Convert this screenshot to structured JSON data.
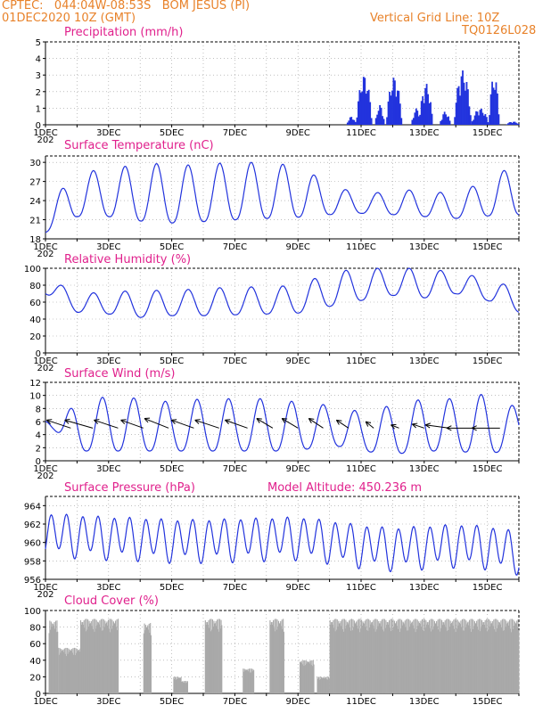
{
  "header": {
    "line1": "CPTEC:   044:04W-08:53S   BOM JESUS (PI)",
    "line2": "01DEC2020 10Z (GMT)",
    "right1": "Vertical Grid Line: 10Z",
    "right2": "TQ0126L028",
    "altitude_label": "Model Altitude: 450.236 m"
  },
  "colors": {
    "header": "#e8822a",
    "title": "#e0208c",
    "line": "#2233dd",
    "cloud": "#a9a9a9"
  },
  "x_axis": {
    "labels": [
      "1DEC",
      "3DEC",
      "5DEC",
      "7DEC",
      "9DEC",
      "11DEC",
      "13DEC",
      "15DEC"
    ],
    "clipped_year": "202"
  },
  "chart_data": [
    {
      "type": "bar",
      "title": "Precipitation (mm/h)",
      "ylim": [
        0,
        5
      ],
      "yticks": [
        0,
        1,
        2,
        3,
        4,
        5
      ],
      "x_range_days": [
        0,
        15
      ],
      "bursts": [
        {
          "day_start": 9.55,
          "day_end": 9.85,
          "peak": 0.5
        },
        {
          "day_start": 9.85,
          "day_end": 10.35,
          "peak": 3.0
        },
        {
          "day_start": 10.45,
          "day_end": 10.75,
          "peak": 1.2
        },
        {
          "day_start": 10.8,
          "day_end": 11.3,
          "peak": 2.9
        },
        {
          "day_start": 11.6,
          "day_end": 11.95,
          "peak": 1.0
        },
        {
          "day_start": 11.85,
          "day_end": 12.25,
          "peak": 2.5
        },
        {
          "day_start": 12.5,
          "day_end": 12.85,
          "peak": 0.8
        },
        {
          "day_start": 12.95,
          "day_end": 13.5,
          "peak": 3.3
        },
        {
          "day_start": 13.5,
          "day_end": 14.05,
          "peak": 1.0
        },
        {
          "day_start": 14.05,
          "day_end": 14.4,
          "peak": 3.0
        },
        {
          "day_start": 14.6,
          "day_end": 15.0,
          "peak": 0.2
        }
      ]
    },
    {
      "type": "line",
      "title": "Surface Temperature (nC)",
      "ylim": [
        18,
        31
      ],
      "yticks": [
        18,
        21,
        24,
        27,
        30
      ],
      "x_range_days": [
        0,
        15
      ],
      "diurnal_cycle": {
        "phase_day": 0.27,
        "min": [
          19.0,
          21.5,
          21.5,
          20.8,
          20.5,
          20.7,
          21.0,
          21.2,
          21.4,
          21.8,
          22.0,
          21.8,
          21.5,
          21.2,
          21.6,
          21.8
        ],
        "max": [
          22.8,
          28.6,
          28.8,
          29.9,
          29.7,
          29.5,
          30.2,
          29.8,
          29.6,
          26.5,
          25.0,
          25.5,
          25.8,
          24.8,
          27.5,
          29.8
        ]
      }
    },
    {
      "type": "line",
      "title": "Relative Humidity (%)",
      "ylim": [
        0,
        100
      ],
      "yticks": [
        0,
        20,
        40,
        60,
        80,
        100
      ],
      "x_range_days": [
        0,
        15
      ],
      "diurnal_cycle": {
        "phase_day": 0.27,
        "min": [
          70,
          48,
          46,
          42,
          44,
          44,
          45,
          46,
          47,
          55,
          62,
          68,
          65,
          70,
          62,
          48
        ],
        "max": [
          90,
          70,
          72,
          74,
          74,
          76,
          78,
          78,
          80,
          95,
          100,
          100,
          100,
          95,
          88,
          75
        ]
      }
    },
    {
      "type": "line",
      "title": "Surface Wind (m/s)",
      "ylim": [
        0,
        12
      ],
      "yticks": [
        0,
        2,
        4,
        6,
        8,
        10,
        12
      ],
      "x_range_days": [
        0,
        15
      ],
      "speed_cycle": {
        "phase_day": 0.55,
        "min": [
          6,
          1.5,
          1.5,
          1.5,
          1.5,
          1.5,
          1.5,
          1.5,
          1.5,
          2.5,
          1.5,
          1.0,
          1.5,
          1.5,
          1.0,
          2.0
        ],
        "max": [
          6,
          8.5,
          10.0,
          9.5,
          9.0,
          9.5,
          9.5,
          9.5,
          9.0,
          8.5,
          7.5,
          8.5,
          9.5,
          9.5,
          10.3,
          8.0
        ]
      },
      "vectors": [
        {
          "day": 0.8,
          "u": -3,
          "v": 1
        },
        {
          "day": 1.5,
          "u": -3.5,
          "v": 1
        },
        {
          "day": 2.3,
          "u": -3,
          "v": 1
        },
        {
          "day": 3.1,
          "u": -2.8,
          "v": 1
        },
        {
          "day": 3.9,
          "u": -3,
          "v": 1.2
        },
        {
          "day": 4.7,
          "u": -2.8,
          "v": 1
        },
        {
          "day": 5.5,
          "u": -3,
          "v": 1
        },
        {
          "day": 6.4,
          "u": -2.8,
          "v": 1
        },
        {
          "day": 7.2,
          "u": -2,
          "v": 1.2
        },
        {
          "day": 8.0,
          "u": -2,
          "v": 1.2
        },
        {
          "day": 8.8,
          "u": -1.8,
          "v": 1.2
        },
        {
          "day": 9.6,
          "u": -1.5,
          "v": 1
        },
        {
          "day": 10.4,
          "u": -1,
          "v": 0.8
        },
        {
          "day": 11.2,
          "u": -1,
          "v": 0.4
        },
        {
          "day": 12.0,
          "u": -1.5,
          "v": 0.5
        },
        {
          "day": 12.8,
          "u": -3,
          "v": 0.4
        },
        {
          "day": 13.6,
          "u": -3.5,
          "v": 0
        },
        {
          "day": 14.4,
          "u": -3.5,
          "v": 0
        }
      ]
    },
    {
      "type": "line",
      "title": "Surface Pressure (hPa)",
      "ylim": [
        956,
        965
      ],
      "yticks": [
        956,
        958,
        960,
        962,
        964
      ],
      "x_range_days": [
        0,
        15
      ],
      "semidiurnal_mean": [
        961,
        960.8,
        960.6,
        960.5,
        960.3,
        960.3,
        960.4,
        960.5,
        960.6,
        960.2,
        959.7,
        959.4,
        959.6,
        959.8,
        959.6,
        959.0
      ],
      "amplitude": 2.1
    },
    {
      "type": "area",
      "title": "Cloud Cover (%)",
      "ylim": [
        0,
        100
      ],
      "yticks": [
        0,
        20,
        40,
        60,
        80,
        100
      ],
      "x_range_days": [
        0,
        15
      ],
      "segments": [
        {
          "day_start": 0.1,
          "day_end": 0.4,
          "level": 88
        },
        {
          "day_start": 0.4,
          "day_end": 1.1,
          "level": 55
        },
        {
          "day_start": 1.1,
          "day_end": 2.3,
          "level": 90
        },
        {
          "day_start": 3.1,
          "day_end": 3.35,
          "level": 85
        },
        {
          "day_start": 4.05,
          "day_end": 4.3,
          "level": 20
        },
        {
          "day_start": 4.3,
          "day_end": 4.5,
          "level": 15
        },
        {
          "day_start": 5.05,
          "day_end": 5.6,
          "level": 90
        },
        {
          "day_start": 6.25,
          "day_end": 6.6,
          "level": 30
        },
        {
          "day_start": 7.1,
          "day_end": 7.55,
          "level": 90
        },
        {
          "day_start": 8.05,
          "day_end": 8.5,
          "level": 40
        },
        {
          "day_start": 8.6,
          "day_end": 9.0,
          "level": 20
        },
        {
          "day_start": 9.0,
          "day_end": 15.0,
          "level": 90
        }
      ]
    }
  ]
}
